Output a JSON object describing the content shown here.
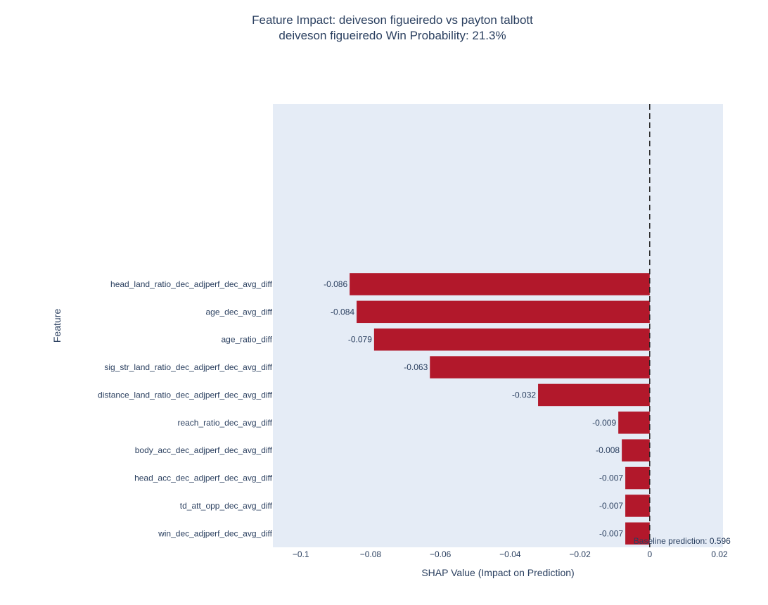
{
  "chart_data": {
    "type": "bar",
    "orientation": "horizontal",
    "title": "Feature Impact: deiveson figueiredo vs payton talbott",
    "subtitle": "deiveson figueiredo Win Probability: 21.3%",
    "xlabel": "SHAP Value (Impact on Prediction)",
    "ylabel": "Feature",
    "xlim": [
      -0.108,
      0.021
    ],
    "x_ticks": [
      -0.1,
      -0.08,
      -0.06,
      -0.04,
      -0.02,
      0,
      0.02
    ],
    "x_tick_labels": [
      "−0.1",
      "−0.08",
      "−0.06",
      "−0.04",
      "−0.02",
      "0",
      "0.02"
    ],
    "grid": false,
    "legend": "none",
    "categories": [
      "head_land_ratio_dec_adjperf_dec_avg_diff",
      "age_dec_avg_diff",
      "age_ratio_diff",
      "sig_str_land_ratio_dec_adjperf_dec_avg_diff",
      "distance_land_ratio_dec_adjperf_dec_avg_diff",
      "reach_ratio_dec_avg_diff",
      "body_acc_dec_adjperf_dec_avg_diff",
      "head_acc_dec_adjperf_dec_avg_diff",
      "td_att_opp_dec_avg_diff",
      "win_dec_adjperf_dec_avg_diff"
    ],
    "values": [
      -0.086,
      -0.084,
      -0.079,
      -0.063,
      -0.032,
      -0.009,
      -0.008,
      -0.007,
      -0.007,
      -0.007
    ],
    "value_labels": [
      "-0.086",
      "-0.084",
      "-0.079",
      "-0.063",
      "-0.032",
      "-0.009",
      "-0.008",
      "-0.007",
      "-0.007",
      "-0.007"
    ],
    "reference_line": {
      "x": 0,
      "style": "dashed"
    },
    "annotation": "Baseline prediction: 0.596",
    "colors": {
      "bar": "#b2182b",
      "plot_bg": "#e5ecf6",
      "text": "#2a3f5f",
      "ref_line": "#222222"
    }
  }
}
